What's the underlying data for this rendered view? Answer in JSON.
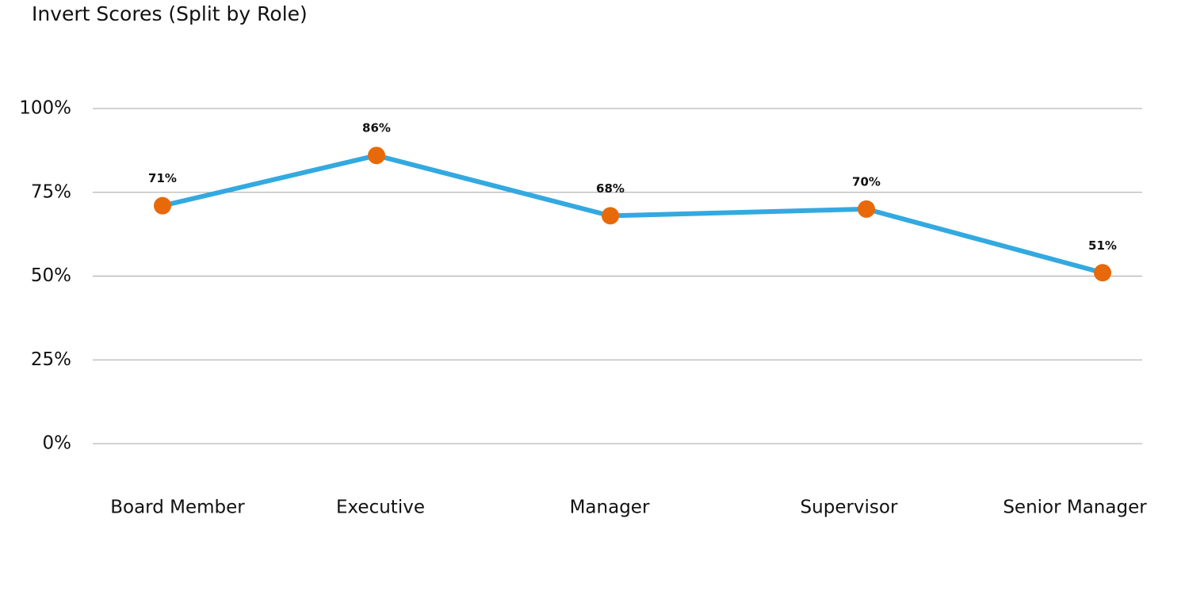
{
  "chart_data": {
    "type": "line",
    "title": "Invert Scores (Split by Role)",
    "categories": [
      "Board Member",
      "Executive",
      "Manager",
      "Supervisor",
      "Senior Manager"
    ],
    "values": [
      71,
      86,
      68,
      70,
      51
    ],
    "value_labels": [
      "71%",
      "86%",
      "68%",
      "70%",
      "51%"
    ],
    "color": "#33a9e0",
    "marker_color": "#e8690a",
    "ylim": [
      0,
      100
    ],
    "yticks": [
      {
        "value": 0,
        "label": "0%"
      },
      {
        "value": 25,
        "label": "25%"
      },
      {
        "value": 50,
        "label": "50%"
      },
      {
        "value": 75,
        "label": "75%"
      },
      {
        "value": 100,
        "label": "100%"
      }
    ],
    "grid": true
  }
}
